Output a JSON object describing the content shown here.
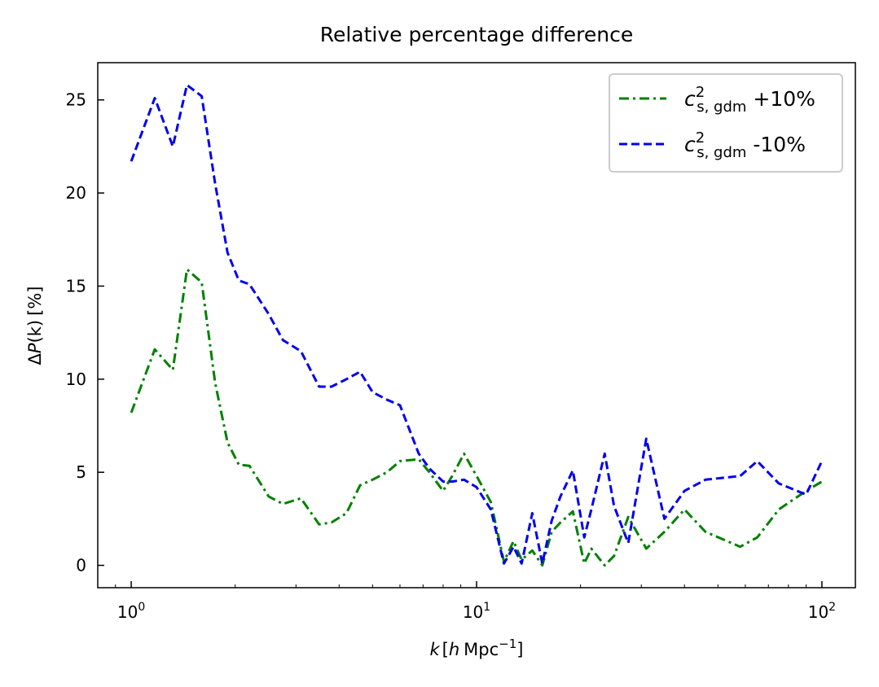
{
  "chart_data": {
    "type": "line",
    "title": "Relative percentage difference",
    "xscale": "log",
    "xlim": [
      0.8,
      125
    ],
    "ylim": [
      -1.2,
      27
    ],
    "xlabel": {
      "var": "k",
      "open": "[",
      "unit_h": "h",
      "unit_mpc": "Mpc",
      "exp": "−1",
      "close": "]"
    },
    "ylabel": {
      "delta": "Δ",
      "var": "P",
      "arg": "(k)",
      "unit": "[%]"
    },
    "xticks": [
      {
        "value": 1,
        "base": "10",
        "exp": "0"
      },
      {
        "value": 10,
        "base": "10",
        "exp": "1"
      },
      {
        "value": 100,
        "base": "10",
        "exp": "2"
      }
    ],
    "yticks": [
      {
        "value": 0,
        "label": "0"
      },
      {
        "value": 5,
        "label": "5"
      },
      {
        "value": 10,
        "label": "10"
      },
      {
        "value": 15,
        "label": "15"
      },
      {
        "value": 20,
        "label": "20"
      },
      {
        "value": 25,
        "label": "25"
      }
    ],
    "legend_position": "upper-right",
    "series": [
      {
        "name": "c_s,gdm^2 +10%",
        "legend": {
          "c": "c",
          "sub": "s, gdm",
          "sup": "2",
          "suffix": " +10%"
        },
        "color": "#008000",
        "style": "dashdot",
        "x": [
          1.0,
          1.17,
          1.32,
          1.45,
          1.6,
          1.75,
          1.9,
          2.05,
          2.2,
          2.5,
          2.75,
          3.1,
          3.5,
          3.8,
          4.2,
          4.6,
          5.0,
          5.5,
          6.0,
          6.8,
          7.3,
          8.0,
          8.5,
          9.2,
          10.0,
          11.0,
          12.0,
          12.8,
          13.5,
          14.5,
          15.5,
          16.5,
          17.5,
          19.0,
          20.5,
          21.5,
          23.5,
          25.0,
          27.5,
          31.0,
          35.0,
          40.0,
          46.0,
          58.0,
          65.0,
          75.0,
          90.0,
          100.0
        ],
        "y": [
          8.2,
          11.6,
          10.5,
          15.9,
          15.2,
          9.8,
          6.6,
          5.4,
          5.35,
          3.7,
          3.3,
          3.6,
          2.2,
          2.3,
          2.8,
          4.3,
          4.6,
          5.0,
          5.6,
          5.7,
          5.0,
          4.0,
          4.8,
          6.0,
          4.8,
          3.4,
          0.2,
          1.3,
          0.3,
          0.8,
          0.0,
          1.8,
          2.3,
          2.9,
          0.1,
          0.9,
          0.0,
          0.5,
          2.6,
          0.9,
          1.8,
          3.0,
          1.8,
          1.0,
          1.5,
          3.0,
          4.0,
          4.5
        ]
      },
      {
        "name": "c_s,gdm^2 -10%",
        "legend": {
          "c": "c",
          "sub": "s, gdm",
          "sup": "2",
          "suffix": " -10%"
        },
        "color": "#0000ee",
        "style": "dashed",
        "x": [
          1.0,
          1.17,
          1.32,
          1.45,
          1.6,
          1.75,
          1.9,
          2.05,
          2.2,
          2.5,
          2.75,
          3.1,
          3.5,
          3.8,
          4.2,
          4.6,
          5.0,
          5.5,
          6.0,
          6.8,
          7.3,
          8.0,
          8.5,
          9.2,
          10.0,
          11.0,
          12.0,
          12.8,
          13.5,
          14.5,
          15.5,
          16.5,
          17.5,
          19.0,
          20.5,
          21.5,
          23.5,
          25.0,
          27.5,
          31.0,
          35.0,
          40.0,
          46.0,
          58.0,
          65.0,
          75.0,
          90.0,
          100.0
        ],
        "y": [
          21.7,
          25.1,
          22.5,
          25.8,
          25.2,
          20.5,
          16.8,
          15.3,
          15.1,
          13.5,
          12.1,
          11.5,
          9.6,
          9.6,
          10.0,
          10.4,
          9.3,
          8.9,
          8.6,
          6.0,
          5.2,
          4.5,
          4.5,
          4.6,
          4.2,
          3.0,
          0.1,
          1.0,
          0.1,
          2.8,
          0.1,
          2.4,
          3.7,
          5.1,
          1.5,
          3.0,
          6.0,
          3.2,
          1.2,
          6.8,
          2.5,
          4.0,
          4.6,
          4.8,
          5.6,
          4.4,
          3.8,
          5.6
        ]
      }
    ]
  }
}
